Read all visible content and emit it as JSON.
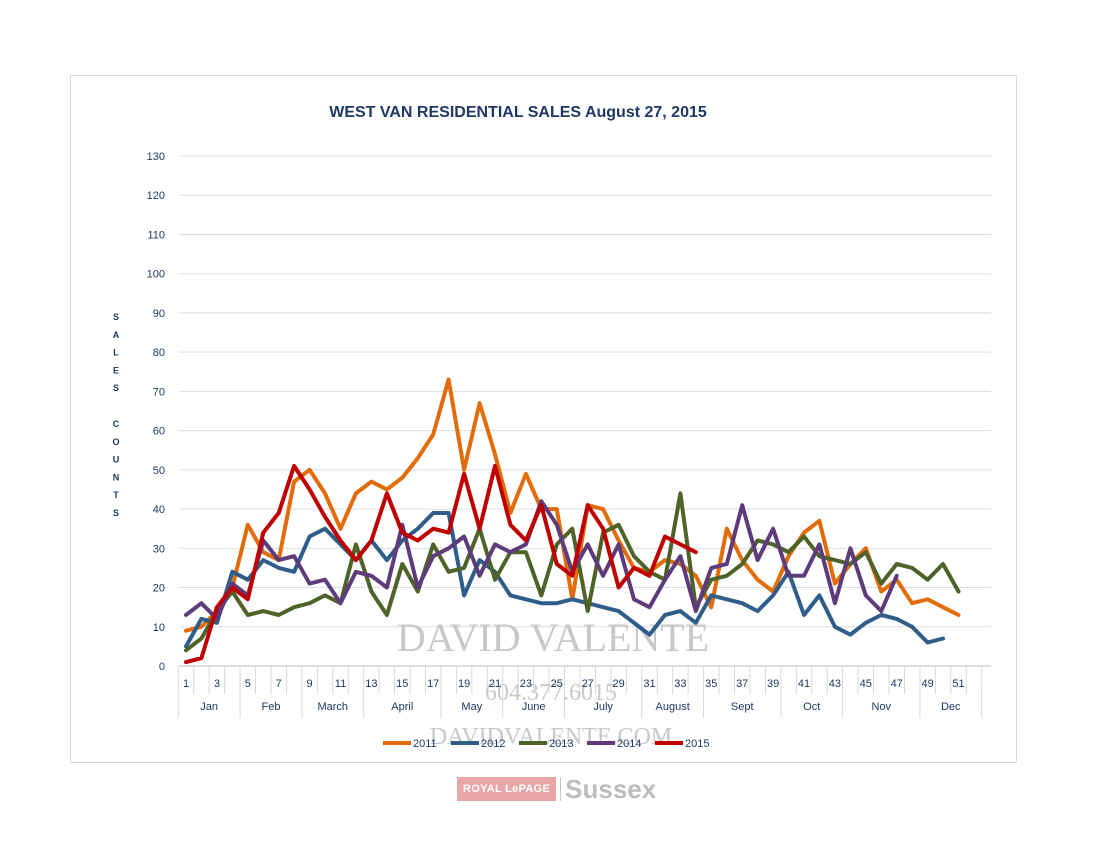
{
  "chart_data": {
    "type": "line",
    "title": "WEST VAN RESIDENTIAL SALES  August 27, 2015",
    "ylabel": "SALES COUNTS",
    "xlabel": "",
    "ylim": [
      0,
      130
    ],
    "yticks": [
      0,
      10,
      20,
      30,
      40,
      50,
      60,
      70,
      80,
      90,
      100,
      110,
      120,
      130
    ],
    "xlim": [
      1,
      53
    ],
    "xticks": [
      1,
      3,
      5,
      7,
      9,
      11,
      13,
      15,
      17,
      19,
      21,
      23,
      25,
      27,
      29,
      31,
      33,
      35,
      37,
      39,
      41,
      43,
      45,
      47,
      49,
      51
    ],
    "month_labels": [
      {
        "label": "Jan",
        "from": 1,
        "to": 4
      },
      {
        "label": "Feb",
        "from": 5,
        "to": 8
      },
      {
        "label": "March",
        "from": 9,
        "to": 12
      },
      {
        "label": "April",
        "from": 13,
        "to": 17
      },
      {
        "label": "May",
        "from": 18,
        "to": 21
      },
      {
        "label": "June",
        "from": 22,
        "to": 25
      },
      {
        "label": "July",
        "from": 26,
        "to": 30
      },
      {
        "label": "August",
        "from": 31,
        "to": 34
      },
      {
        "label": "Sept",
        "from": 35,
        "to": 39
      },
      {
        "label": "Oct",
        "from": 40,
        "to": 43
      },
      {
        "label": "Nov",
        "from": 44,
        "to": 48
      },
      {
        "label": "Dec",
        "from": 49,
        "to": 52
      }
    ],
    "grid": true,
    "legend_position": "bottom",
    "series": [
      {
        "name": "2011",
        "color": "#e36c0a",
        "values": [
          9,
          10,
          14,
          20,
          36,
          29,
          27,
          47,
          50,
          44,
          35,
          44,
          47,
          45,
          48,
          53,
          59,
          73,
          50,
          67,
          54,
          39,
          49,
          40,
          40,
          17,
          41,
          40,
          32,
          25,
          24,
          27,
          26,
          23,
          15,
          35,
          27,
          22,
          19,
          28,
          34,
          37,
          21,
          26,
          30,
          19,
          22,
          16,
          17,
          15,
          13
        ]
      },
      {
        "name": "2012",
        "color": "#2f5d8a",
        "values": [
          5,
          12,
          11,
          24,
          22,
          27,
          25,
          24,
          33,
          35,
          31,
          27,
          32,
          27,
          32,
          35,
          39,
          39,
          18,
          27,
          24,
          18,
          17,
          16,
          16,
          17,
          16,
          15,
          14,
          11,
          8,
          13,
          14,
          11,
          18,
          17,
          16,
          14,
          18,
          24,
          13,
          18,
          10,
          8,
          11,
          13,
          12,
          10,
          6,
          7
        ]
      },
      {
        "name": "2013",
        "color": "#4f6228",
        "values": [
          4,
          7,
          14,
          19,
          13,
          14,
          13,
          15,
          16,
          18,
          16,
          31,
          19,
          13,
          26,
          19,
          31,
          24,
          25,
          35,
          22,
          29,
          29,
          18,
          31,
          35,
          14,
          34,
          36,
          28,
          24,
          22,
          44,
          15,
          22,
          23,
          26,
          32,
          31,
          29,
          33,
          28,
          27,
          26,
          29,
          21,
          26,
          25,
          22,
          26,
          19
        ]
      },
      {
        "name": "2014",
        "color": "#5e3c7c",
        "values": [
          13,
          16,
          12,
          21,
          18,
          32,
          27,
          28,
          21,
          22,
          16,
          24,
          23,
          20,
          36,
          20,
          28,
          30,
          33,
          23,
          31,
          29,
          31,
          42,
          36,
          24,
          31,
          23,
          31,
          17,
          15,
          22,
          28,
          14,
          25,
          26,
          41,
          27,
          35,
          23,
          23,
          31,
          16,
          30,
          18,
          14,
          23
        ]
      },
      {
        "name": "2015",
        "color": "#c00000",
        "values": [
          1,
          2,
          15,
          20,
          17,
          34,
          39,
          51,
          45,
          38,
          32,
          27,
          32,
          44,
          34,
          32,
          35,
          34,
          49,
          35,
          51,
          36,
          32,
          41,
          26,
          23,
          41,
          35,
          20,
          25,
          23,
          33,
          31,
          29
        ]
      }
    ],
    "annotations": [
      "DAVID VALENTE",
      "604.377.6015",
      "DAVIDVALENTE.COM"
    ]
  },
  "footer": {
    "brand_left": "ROYAL LePAGE",
    "brand_right": "Sussex"
  }
}
